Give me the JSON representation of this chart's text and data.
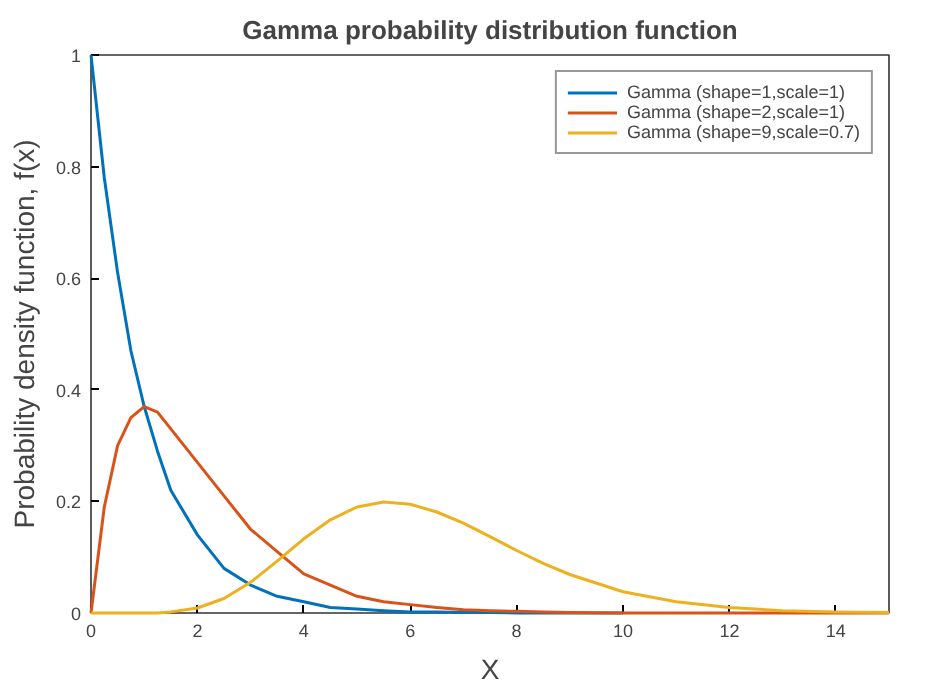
{
  "chart_data": {
    "type": "line",
    "title": "Gamma probability distribution function",
    "xlabel": "X",
    "ylabel": "Probability density function, f(x)",
    "x": [
      0,
      0.25,
      0.5,
      0.75,
      1,
      1.25,
      1.5,
      2,
      2.5,
      3,
      3.5,
      4,
      4.5,
      5,
      5.5,
      6,
      6.5,
      7,
      7.5,
      8,
      8.5,
      9,
      10,
      11,
      12,
      13,
      14,
      15
    ],
    "series": [
      {
        "name": "Gamma (shape=1,scale=1)",
        "color": "#0072bd",
        "x": [
          0,
          0.25,
          0.5,
          0.75,
          1,
          1.25,
          1.5,
          2,
          2.5,
          3,
          3.5,
          4,
          4.5,
          5,
          5.5,
          6,
          6.5,
          7,
          7.5,
          8,
          8.5,
          9,
          10
        ],
        "values": [
          1,
          0.78,
          0.61,
          0.47,
          0.37,
          0.29,
          0.22,
          0.14,
          0.08,
          0.05,
          0.03,
          0.02,
          0.01,
          0.007,
          0.004,
          0.002,
          0.002,
          0.001,
          0.001,
          0,
          0,
          0,
          0
        ]
      },
      {
        "name": "Gamma (shape=2,scale=1)",
        "color": "#d95319",
        "values": [
          0,
          0.19,
          0.3,
          0.35,
          0.37,
          0.36,
          0.33,
          0.27,
          0.21,
          0.15,
          0.11,
          0.07,
          0.05,
          0.03,
          0.02,
          0.015,
          0.01,
          0.006,
          0.004,
          0.003,
          0.002,
          0.001,
          0,
          0,
          0,
          0,
          0,
          0
        ]
      },
      {
        "name": "Gamma (shape=9,scale=0.7)",
        "color": "#edb120",
        "values": [
          0,
          0,
          0,
          0,
          0,
          0,
          0.002,
          0.009,
          0.026,
          0.055,
          0.093,
          0.133,
          0.167,
          0.19,
          0.199,
          0.195,
          0.181,
          0.161,
          0.137,
          0.112,
          0.089,
          0.069,
          0.038,
          0.02,
          0.01,
          0.004,
          0.002,
          0.001
        ]
      }
    ],
    "xlim": [
      0,
      15
    ],
    "xticks": [
      0,
      2,
      4,
      6,
      8,
      10,
      12,
      14
    ],
    "ylim": [
      0,
      1
    ],
    "yticks": [
      0,
      0.2,
      0.4,
      0.6,
      0.8,
      1
    ],
    "grid": false,
    "legend": "top right",
    "marker": "none",
    "line_style": "solid"
  }
}
